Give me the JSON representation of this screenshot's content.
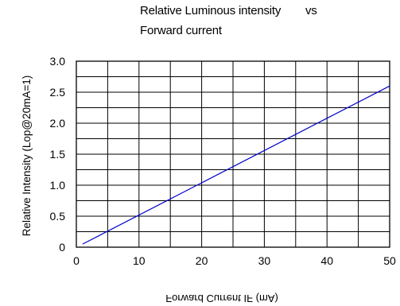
{
  "chart_data": {
    "type": "line",
    "title_line1": "Relative Luminous intensity",
    "title_vs": "vs",
    "title_line2": "Forward current",
    "ylabel": "Relative Intensity  (Lop@20mA=1)",
    "xlabel": "Forward Current IF (mA)",
    "xlim": [
      0,
      50
    ],
    "ylim": [
      0,
      3.0
    ],
    "grid": true,
    "x_ticks": [
      0,
      10,
      20,
      30,
      40,
      50
    ],
    "x_tick_labels": [
      "0",
      "10",
      "20",
      "30",
      "40",
      "50"
    ],
    "y_ticks": [
      0,
      0.5,
      1.0,
      1.5,
      2.0,
      2.5,
      3.0
    ],
    "y_tick_labels": [
      "0",
      "0.5",
      "1.0",
      "1.5",
      "2.0",
      "2.5",
      "3.0"
    ],
    "series": [
      {
        "color": "#0000cc",
        "x": [
          1,
          50
        ],
        "y": [
          0.05,
          2.6
        ]
      }
    ]
  }
}
